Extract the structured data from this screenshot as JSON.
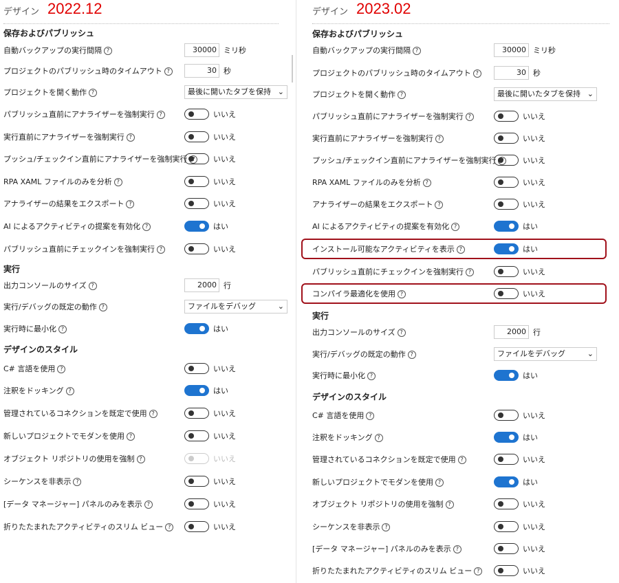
{
  "panels": [
    {
      "id": "left",
      "header": "デザイン",
      "version": "2022.12",
      "rows": [
        {
          "t": "section",
          "label": "保存およびパブリッシュ"
        },
        {
          "t": "input",
          "label": "自動バックアップの実行間隔",
          "value": "30000",
          "unit": "ミリ秒"
        },
        {
          "t": "input",
          "label": "プロジェクトのパブリッシュ時のタイムアウト",
          "value": "30",
          "unit": "秒"
        },
        {
          "t": "select",
          "label": "プロジェクトを開く動作",
          "value": "最後に開いたタブを保持"
        },
        {
          "t": "toggle",
          "label": "パブリッシュ直前にアナライザーを強制実行",
          "on": false,
          "text": "いいえ"
        },
        {
          "t": "toggle",
          "label": "実行直前にアナライザーを強制実行",
          "on": false,
          "text": "いいえ"
        },
        {
          "t": "toggle",
          "label": "プッシュ/チェックイン直前にアナライザーを強制実行",
          "on": false,
          "text": "いいえ"
        },
        {
          "t": "toggle",
          "label": "RPA XAML ファイルのみを分析",
          "on": false,
          "text": "いいえ"
        },
        {
          "t": "toggle",
          "label": "アナライザーの結果をエクスポート",
          "on": false,
          "text": "いいえ"
        },
        {
          "t": "toggle",
          "label": "AI によるアクティビティの提案を有効化",
          "on": true,
          "text": "はい"
        },
        {
          "t": "toggle",
          "label": "パブリッシュ直前にチェックインを強制実行",
          "on": false,
          "text": "いいえ"
        },
        {
          "t": "section",
          "label": "実行"
        },
        {
          "t": "input",
          "label": "出力コンソールのサイズ",
          "value": "2000",
          "unit": "行"
        },
        {
          "t": "select",
          "label": "実行/デバッグの既定の動作",
          "value": "ファイルをデバッグ"
        },
        {
          "t": "toggle",
          "label": "実行時に最小化",
          "on": true,
          "text": "はい"
        },
        {
          "t": "section",
          "label": "デザインのスタイル"
        },
        {
          "t": "toggle",
          "label": "C# 言語を使用",
          "on": false,
          "text": "いいえ"
        },
        {
          "t": "toggle",
          "label": "注釈をドッキング",
          "on": true,
          "text": "はい"
        },
        {
          "t": "toggle",
          "label": "管理されているコネクションを既定で使用",
          "on": false,
          "text": "いいえ"
        },
        {
          "t": "toggle",
          "label": "新しいプロジェクトでモダンを使用",
          "on": false,
          "text": "いいえ"
        },
        {
          "t": "toggle",
          "label": "オブジェクト リポジトリの使用を強制",
          "on": false,
          "text": "いいえ",
          "disabled": true
        },
        {
          "t": "toggle",
          "label": "シーケンスを非表示",
          "on": false,
          "text": "いいえ"
        },
        {
          "t": "toggle",
          "label": "[データ マネージャー] パネルのみを表示",
          "on": false,
          "text": "いいえ"
        },
        {
          "t": "toggle",
          "label": "折りたたまれたアクティビティのスリム ビュー",
          "on": false,
          "text": "いいえ"
        }
      ]
    },
    {
      "id": "right",
      "header": "デザイン",
      "version": "2023.02",
      "rows": [
        {
          "t": "section",
          "label": "保存およびパブリッシュ"
        },
        {
          "t": "input",
          "label": "自動バックアップの実行間隔",
          "value": "30000",
          "unit": "ミリ秒"
        },
        {
          "t": "input",
          "label": "プロジェクトのパブリッシュ時のタイムアウト",
          "value": "30",
          "unit": "秒"
        },
        {
          "t": "select",
          "label": "プロジェクトを開く動作",
          "value": "最後に開いたタブを保持"
        },
        {
          "t": "toggle",
          "label": "パブリッシュ直前にアナライザーを強制実行",
          "on": false,
          "text": "いいえ"
        },
        {
          "t": "toggle",
          "label": "実行直前にアナライザーを強制実行",
          "on": false,
          "text": "いいえ"
        },
        {
          "t": "toggle",
          "label": "プッシュ/チェックイン直前にアナライザーを強制実行",
          "on": false,
          "text": "いいえ"
        },
        {
          "t": "toggle",
          "label": "RPA XAML ファイルのみを分析",
          "on": false,
          "text": "いいえ"
        },
        {
          "t": "toggle",
          "label": "アナライザーの結果をエクスポート",
          "on": false,
          "text": "いいえ"
        },
        {
          "t": "toggle",
          "label": "AI によるアクティビティの提案を有効化",
          "on": true,
          "text": "はい"
        },
        {
          "t": "toggle",
          "label": "インストール可能なアクティビティを表示",
          "on": true,
          "text": "はい",
          "highlight": true
        },
        {
          "t": "toggle",
          "label": "パブリッシュ直前にチェックインを強制実行",
          "on": false,
          "text": "いいえ"
        },
        {
          "t": "toggle",
          "label": "コンパイラ最適化を使用",
          "on": false,
          "text": "いいえ",
          "highlight": true
        },
        {
          "t": "section",
          "label": "実行"
        },
        {
          "t": "input",
          "label": "出力コンソールのサイズ",
          "value": "2000",
          "unit": "行"
        },
        {
          "t": "select",
          "label": "実行/デバッグの既定の動作",
          "value": "ファイルをデバッグ"
        },
        {
          "t": "toggle",
          "label": "実行時に最小化",
          "on": true,
          "text": "はい"
        },
        {
          "t": "section",
          "label": "デザインのスタイル"
        },
        {
          "t": "toggle",
          "label": "C# 言語を使用",
          "on": false,
          "text": "いいえ"
        },
        {
          "t": "toggle",
          "label": "注釈をドッキング",
          "on": true,
          "text": "はい"
        },
        {
          "t": "toggle",
          "label": "管理されているコネクションを既定で使用",
          "on": false,
          "text": "いいえ"
        },
        {
          "t": "toggle",
          "label": "新しいプロジェクトでモダンを使用",
          "on": true,
          "text": "はい"
        },
        {
          "t": "toggle",
          "label": "オブジェクト リポジトリの使用を強制",
          "on": false,
          "text": "いいえ"
        },
        {
          "t": "toggle",
          "label": "シーケンスを非表示",
          "on": false,
          "text": "いいえ"
        },
        {
          "t": "toggle",
          "label": "[データ マネージャー] パネルのみを表示",
          "on": false,
          "text": "いいえ"
        },
        {
          "t": "toggle",
          "label": "折りたたまれたアクティビティのスリム ビュー",
          "on": false,
          "text": "いいえ"
        }
      ]
    }
  ],
  "help_glyph": "?",
  "select_chevron": "⌄",
  "colors": {
    "accent": "#1e74d0",
    "version": "#e00000",
    "highlight": "#a0101a"
  }
}
